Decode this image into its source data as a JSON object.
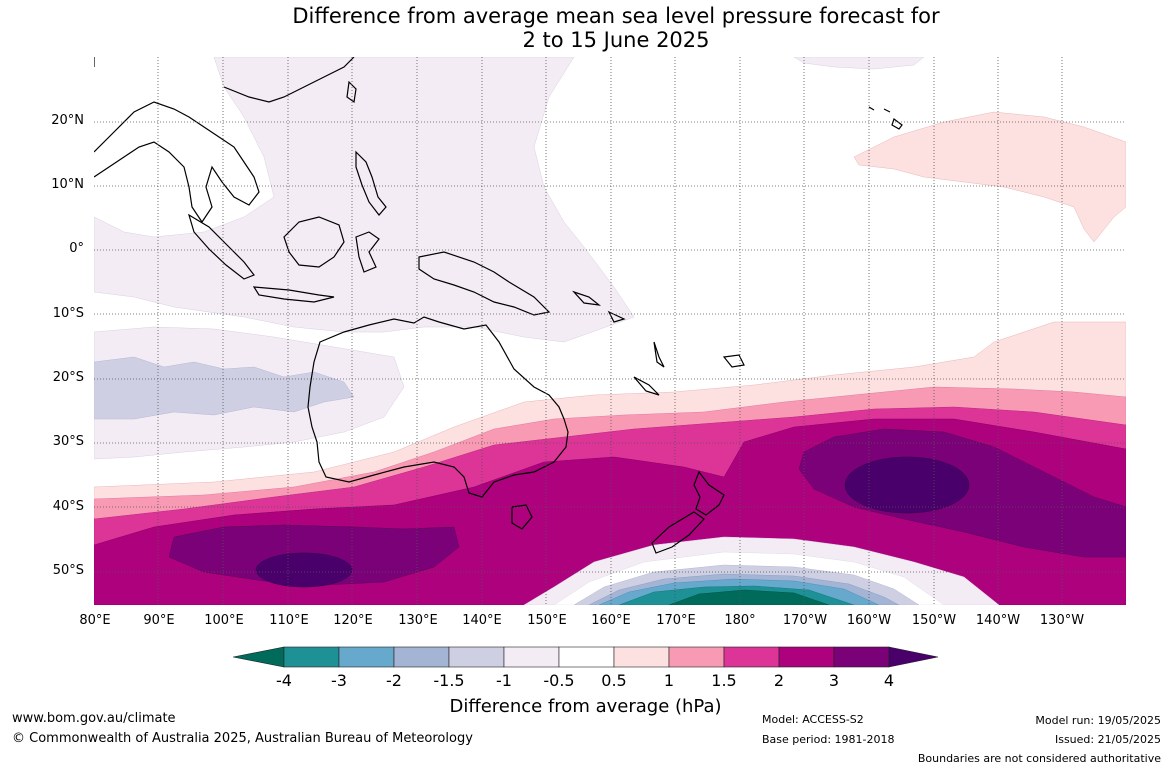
{
  "title": {
    "line1": "Difference from average mean sea level pressure forecast for",
    "line2": "2 to 15 June 2025"
  },
  "map": {
    "lat_labels": [
      "20°N",
      "10°N",
      "0°",
      "10°S",
      "20°S",
      "30°S",
      "40°S",
      "50°S"
    ],
    "lon_labels": [
      "80°E",
      "90°E",
      "100°E",
      "110°E",
      "120°E",
      "130°E",
      "140°E",
      "150°E",
      "160°E",
      "170°E",
      "180°",
      "170°W",
      "160°W",
      "150°W",
      "140°W",
      "130°W"
    ],
    "gridlines": "dotted"
  },
  "colorbar": {
    "ticks": [
      "-4",
      "-3",
      "-2",
      "-1.5",
      "-1",
      "-0.5",
      "0.5",
      "1",
      "1.5",
      "2",
      "3",
      "4"
    ],
    "colors": [
      "#006b5a",
      "#1d9196",
      "#67a8cd",
      "#a4b4d4",
      "#cfcfe4",
      "#f3ecf4",
      "#ffffff",
      "#fde0e0",
      "#f99ab5",
      "#dd3497",
      "#ae017e",
      "#7a0177",
      "#49006a"
    ],
    "label": "Difference from average (hPa)"
  },
  "footer": {
    "website": "www.bom.gov.au/climate",
    "copyright": "© Commonwealth of Australia 2025, Australian Bureau of Meteorology",
    "model": "Model: ACCESS-S2",
    "base_period": "Base period: 1981-2018",
    "model_run": "Model run: 19/05/2025",
    "issued": "Issued: 21/05/2025",
    "disclaimer": "Boundaries are not considered authoritative"
  }
}
